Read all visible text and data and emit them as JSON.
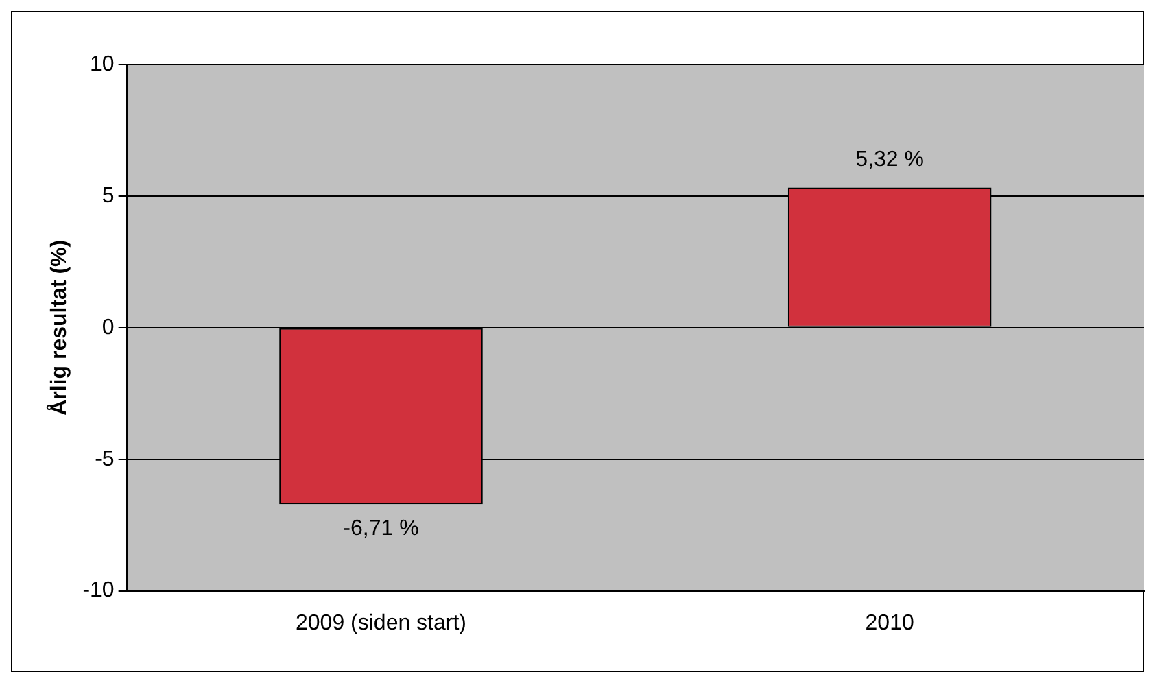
{
  "chart_data": {
    "type": "bar",
    "ylabel": "Årlig resultat (%)",
    "categories": [
      "2009 (siden start)",
      "2010"
    ],
    "values": [
      -6.71,
      5.32
    ],
    "value_labels": [
      "-6,71 %",
      "5,32 %"
    ],
    "color": "#d1313d",
    "ylim": [
      -10,
      10
    ],
    "yticks": [
      -10,
      -5,
      0,
      5,
      10
    ],
    "grid": "y",
    "legend": false
  }
}
